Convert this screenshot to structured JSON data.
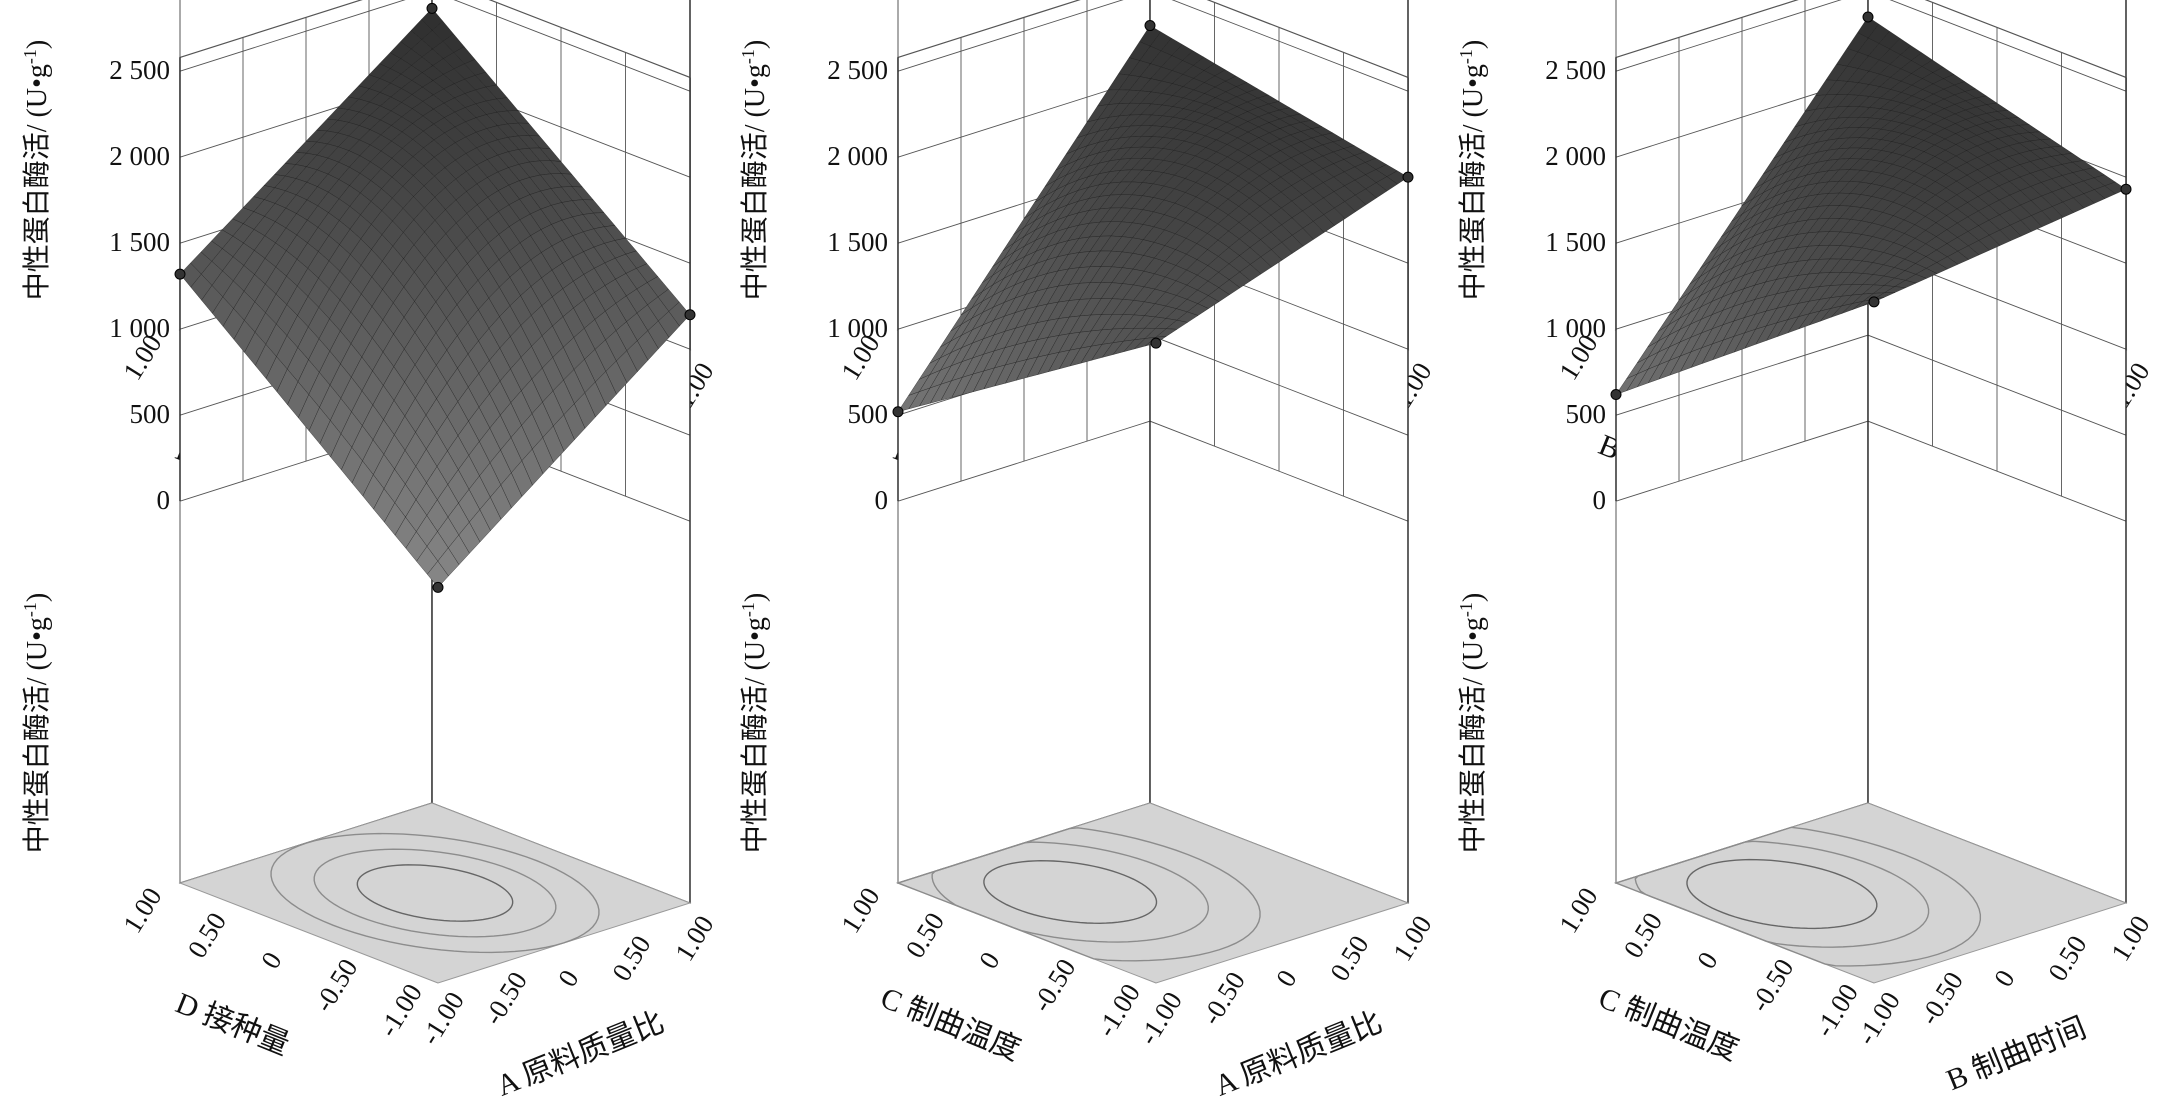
{
  "figure": {
    "z_label": "中性蛋白酶活/ (U•g",
    "z_label_sup": "-1",
    "z_label_close": ")",
    "z_ticks": [
      "0",
      "500",
      "1 000",
      "1 500",
      "2 000",
      "2 500"
    ],
    "xy_ticks": [
      "-1.00",
      "-0.50",
      "0",
      "0.50",
      "1.00"
    ]
  },
  "colors": {
    "surface_low": "#8a8a8a",
    "surface_high": "#2a2a2a",
    "mesh_line": "#1a1a1a",
    "floor": "#d4d4d4",
    "grid": "#555555",
    "contour": "#8c8c8c",
    "point": "#333333"
  },
  "chart_data": [
    {
      "type": "surface3d",
      "zlabel": "中性蛋白酶活/ (U•g-1)",
      "left_axis_label": "D 接种量",
      "right_axis_label": "B 制曲时间",
      "xlim": [
        -1,
        1
      ],
      "ylim": [
        -1,
        1
      ],
      "zlim": [
        0,
        2500
      ],
      "left_ticks": [
        "1.00",
        "0.50",
        "0",
        "-0.50",
        "-1.00"
      ],
      "right_ticks": [
        "-1.00",
        "-0.50",
        "0",
        "0.50",
        "1.00"
      ],
      "z_ticks": [
        "0",
        "500",
        "1 000",
        "1 500",
        "2 000",
        "2 500"
      ],
      "corners": {
        "back": 2400,
        "left": 1720,
        "right": 1270,
        "front": 700
      },
      "contour_center": [
        0.05,
        0.0
      ],
      "contour_radii": [
        0.45,
        0.7
      ]
    },
    {
      "type": "surface3d",
      "zlabel": "中性蛋白酶活/ (U•g-1)",
      "left_axis_label": "D 接种量",
      "right_axis_label": "C 制曲温度",
      "xlim": [
        -1,
        1
      ],
      "ylim": [
        -1,
        1
      ],
      "zlim": [
        0,
        2500
      ],
      "left_ticks": [
        "1.00",
        "0.50",
        "0",
        "-0.50",
        "-1.00"
      ],
      "right_ticks": [
        "-1.00",
        "-0.50",
        "0",
        "0.50",
        "1.00"
      ],
      "z_ticks": [
        "0",
        "500",
        "1 000",
        "1 500",
        "2 000",
        "2 500"
      ],
      "corners": {
        "back": 2300,
        "left": 1470,
        "right": 320,
        "front": 920
      },
      "contour_center": [
        0.0,
        -0.35
      ],
      "contour_radii": [
        0.5,
        0.8,
        1.05
      ]
    },
    {
      "type": "surface3d",
      "zlabel": "中性蛋白酶活/ (U•g-1)",
      "left_axis_label": "B 制曲时间",
      "right_axis_label": "A 原料质量比",
      "xlim": [
        -1,
        1
      ],
      "ylim": [
        -1,
        1
      ],
      "zlim": [
        0,
        2500
      ],
      "left_ticks": [
        "1.00",
        "0.50",
        "0",
        "-0.50",
        "-1.00"
      ],
      "right_ticks": [
        "-1.00",
        "-0.50",
        "0",
        "0.50",
        "1.00"
      ],
      "z_ticks": [
        "0",
        "500",
        "1 000",
        "1 500",
        "2 000",
        "2 500"
      ],
      "corners": {
        "back": 2400,
        "left": 1310,
        "right": 1780,
        "front": 620
      },
      "contour_center": [
        0.1,
        0.2
      ],
      "contour_radii": [
        0.5,
        0.75
      ]
    },
    {
      "type": "surface3d",
      "zlabel": "中性蛋白酶活/ (U•g-1)",
      "left_axis_label": "D 接种量",
      "right_axis_label": "A 原料质量比",
      "xlim": [
        -1,
        1
      ],
      "ylim": [
        -1,
        1
      ],
      "zlim": [
        0,
        2500
      ],
      "left_ticks": [
        "1.00",
        "0.50",
        "0",
        "-0.50",
        "-1.00"
      ],
      "right_ticks": [
        "-1.00",
        "-0.50",
        "0",
        "0.50",
        "1.00"
      ],
      "z_ticks": [
        "0",
        "500",
        "1 000",
        "1 500",
        "2 000",
        "2 500"
      ],
      "corners": {
        "back": 2400,
        "left": 1320,
        "right": 1200,
        "front": 80
      },
      "contour_center": [
        0.0,
        0.0
      ],
      "contour_radii": [
        0.45,
        0.7,
        0.95
      ]
    },
    {
      "type": "surface3d",
      "zlabel": "中性蛋白酶活/ (U•g-1)",
      "left_axis_label": "C 制曲温度",
      "right_axis_label": "A 原料质量比",
      "xlim": [
        -1,
        1
      ],
      "ylim": [
        -1,
        1
      ],
      "zlim": [
        0,
        2500
      ],
      "left_ticks": [
        "1.00",
        "0.50",
        "0",
        "-0.50",
        "-1.00"
      ],
      "right_ticks": [
        "-1.00",
        "-0.50",
        "0",
        "0.50",
        "1.00"
      ],
      "z_ticks": [
        "0",
        "500",
        "1 000",
        "1 500",
        "2 000",
        "2 500"
      ],
      "corners": {
        "back": 2300,
        "left": 520,
        "right": 2000,
        "front": 1500
      },
      "contour_center": [
        0.3,
        -0.35
      ],
      "contour_radii": [
        0.5,
        0.8,
        1.1
      ]
    },
    {
      "type": "surface3d",
      "zlabel": "中性蛋白酶活/ (U•g-1)",
      "left_axis_label": "C 制曲温度",
      "right_axis_label": "B 制曲时间",
      "xlim": [
        -1,
        1
      ],
      "ylim": [
        -1,
        1
      ],
      "zlim": [
        0,
        2500
      ],
      "left_ticks": [
        "1.00",
        "0.50",
        "0",
        "-0.50",
        "-1.00"
      ],
      "right_ticks": [
        "-1.00",
        "-0.50",
        "0",
        "0.50",
        "1.00"
      ],
      "z_ticks": [
        "0",
        "500",
        "1 000",
        "1 500",
        "2 000",
        "2 500"
      ],
      "corners": {
        "back": 2350,
        "left": 620,
        "right": 1930,
        "front": 1740
      },
      "contour_center": [
        0.3,
        -0.4
      ],
      "contour_radii": [
        0.55,
        0.85,
        1.15
      ]
    }
  ]
}
